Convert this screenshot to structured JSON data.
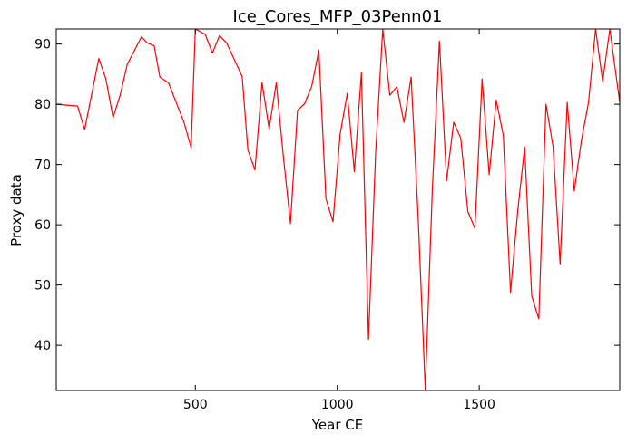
{
  "chart_data": {
    "type": "line",
    "title": "Ice_Cores_MFP_03Penn01",
    "xlabel": "Year CE",
    "ylabel": "Proxy data",
    "xlim": [
      10,
      1995
    ],
    "ylim": [
      32.5,
      92.5
    ],
    "xticks": [
      500,
      1000,
      1500
    ],
    "yticks": [
      40,
      50,
      60,
      70,
      80,
      90
    ],
    "grid": false,
    "series": [
      {
        "color": "#ff0000",
        "x": [
          10,
          85,
          110,
          130,
          160,
          185,
          210,
          235,
          260,
          310,
          330,
          355,
          375,
          405,
          460,
          485,
          500,
          535,
          560,
          585,
          610,
          665,
          685,
          710,
          735,
          760,
          785,
          810,
          835,
          860,
          885,
          910,
          935,
          960,
          985,
          1010,
          1035,
          1060,
          1085,
          1110,
          1135,
          1160,
          1185,
          1210,
          1235,
          1260,
          1285,
          1310,
          1335,
          1360,
          1385,
          1410,
          1435,
          1460,
          1485,
          1510,
          1535,
          1560,
          1585,
          1610,
          1635,
          1660,
          1685,
          1710,
          1735,
          1760,
          1785,
          1810,
          1835,
          1860,
          1885,
          1910,
          1935,
          1960,
          1995
        ],
        "y": [
          80.0,
          79.7,
          75.8,
          80.5,
          87.6,
          84.2,
          77.8,
          81.5,
          86.6,
          91.2,
          90.2,
          89.7,
          84.5,
          83.6,
          77.0,
          72.8,
          92.5,
          91.6,
          88.5,
          91.4,
          90.2,
          84.6,
          72.4,
          69.1,
          83.6,
          75.9,
          83.6,
          71.3,
          60.2,
          79.0,
          80.1,
          83.0,
          89.0,
          64.3,
          60.5,
          75.0,
          81.8,
          68.8,
          85.2,
          41.0,
          72.0,
          92.5,
          81.5,
          82.9,
          77.0,
          84.5,
          61.0,
          32.6,
          66.0,
          90.5,
          67.3,
          77.0,
          74.4,
          62.2,
          59.4,
          84.2,
          68.3,
          80.7,
          74.8,
          48.8,
          62.0,
          72.9,
          48.2,
          44.4,
          80.0,
          73.0,
          53.5,
          80.3,
          65.6,
          74.0,
          80.3,
          92.5,
          83.8,
          92.5,
          80.3
        ]
      }
    ]
  }
}
